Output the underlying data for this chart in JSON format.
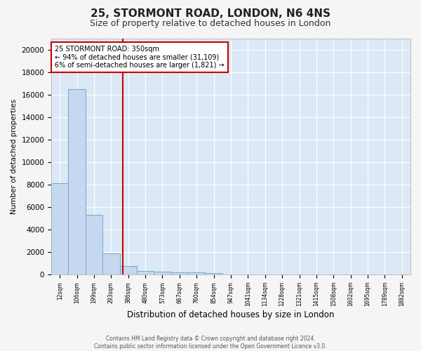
{
  "title1": "25, STORMONT ROAD, LONDON, N6 4NS",
  "title2": "Size of property relative to detached houses in London",
  "xlabel": "Distribution of detached houses by size in London",
  "ylabel": "Number of detached properties",
  "bar_labels": [
    "12sqm",
    "106sqm",
    "199sqm",
    "293sqm",
    "386sqm",
    "480sqm",
    "573sqm",
    "667sqm",
    "760sqm",
    "854sqm",
    "947sqm",
    "1041sqm",
    "1134sqm",
    "1228sqm",
    "1321sqm",
    "1415sqm",
    "1508sqm",
    "1602sqm",
    "1695sqm",
    "1789sqm",
    "1882sqm"
  ],
  "bar_values": [
    8100,
    16500,
    5300,
    1900,
    750,
    330,
    230,
    210,
    170,
    160,
    0,
    0,
    0,
    0,
    0,
    0,
    0,
    0,
    0,
    0,
    0
  ],
  "bar_color": "#c5d8f0",
  "bar_edge_color": "#6aaad4",
  "vline_x": 3.68,
  "vline_color": "#cc0000",
  "annotation_text": "25 STORMONT ROAD: 350sqm\n← 94% of detached houses are smaller (31,109)\n6% of semi-detached houses are larger (1,821) →",
  "annotation_box_color": "#ffffff",
  "annotation_box_edge": "#cc0000",
  "ylim": [
    0,
    21000
  ],
  "yticks": [
    0,
    2000,
    4000,
    6000,
    8000,
    10000,
    12000,
    14000,
    16000,
    18000,
    20000
  ],
  "bg_color": "#dce8f5",
  "fig_bg_color": "#f5f5f5",
  "footer": "Contains HM Land Registry data © Crown copyright and database right 2024.\nContains public sector information licensed under the Open Government Licence v3.0.",
  "title1_fontsize": 11,
  "title2_fontsize": 9
}
